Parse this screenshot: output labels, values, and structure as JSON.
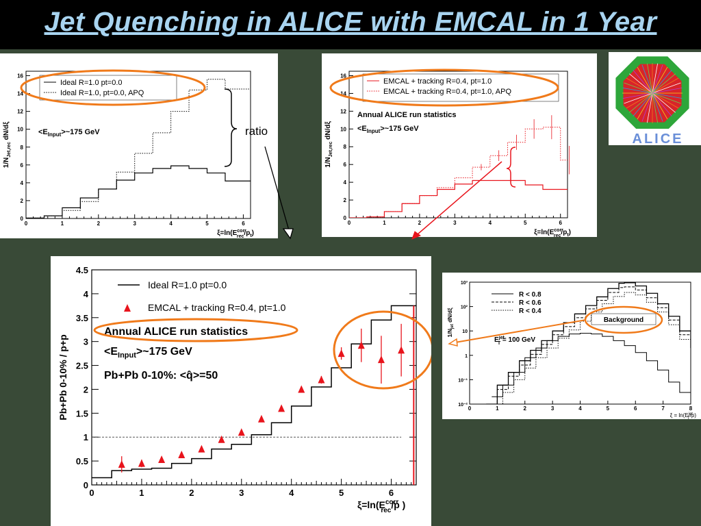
{
  "title": "Jet Quenching in ALICE with EMCAL in 1 Year",
  "ratio_label": "ratio",
  "logo": {
    "text": "ALICE",
    "colors": {
      "octagon": "#2ea63a",
      "inner": "#d8242a",
      "text": "#6a8fd8"
    }
  },
  "colors": {
    "accent_orange": "#f07a1a",
    "red": "#e8141c",
    "black": "#000000"
  },
  "chart_data": [
    {
      "type": "line",
      "ylabel_main": "1/N",
      "ylabel_sub": "Jet,rec",
      "ylabel_tail": " dN/dξ",
      "xlabel": "ξ=ln(E",
      "xlabel_sup": "corr",
      "xlabel_sub": "rec",
      "xlabel_tail": "/p",
      "xlabel_tail_sub": "t",
      "xlabel_end": ")",
      "xlim": [
        0,
        6.2
      ],
      "ylim": [
        0,
        16.5
      ],
      "xticks": [
        "0",
        "1",
        "2",
        "3",
        "4",
        "5",
        "6"
      ],
      "yticks": [
        "0",
        "2",
        "4",
        "6",
        "8",
        "10",
        "12",
        "14",
        "16"
      ],
      "legend": [
        "Ideal R=1.0 pt=0.0",
        "Ideal R=1.0, pt=0.0, APQ"
      ],
      "annotation_main": "<E",
      "annotation_sub": "Input",
      "annotation_tail": ">~175 GeV",
      "edges": [
        0,
        0.5,
        1,
        1.5,
        2,
        2.5,
        3,
        3.5,
        4,
        4.5,
        5,
        5.5,
        6,
        6.5
      ],
      "series": [
        {
          "name": "Ideal R=1.0 pt=0.0",
          "style": "solid",
          "values": [
            0.05,
            0.3,
            1.2,
            2.3,
            3.3,
            4.3,
            5.1,
            5.6,
            5.9,
            5.6,
            5.1,
            4.2,
            4.2
          ]
        },
        {
          "name": "Ideal R=1.0, pt=0.0, APQ",
          "style": "dotted",
          "values": [
            0.05,
            0.3,
            0.9,
            1.9,
            3.3,
            5.2,
            7.3,
            9.6,
            12.0,
            14.4,
            15.6,
            14.5,
            14.5
          ]
        }
      ]
    },
    {
      "type": "line",
      "ylabel_main": "1/N",
      "ylabel_sub": "Jet,rec",
      "ylabel_tail": " dN/dξ",
      "xlabel": "ξ=ln(E",
      "xlabel_sup": "corr",
      "xlabel_sub": "rec",
      "xlabel_tail": "/p",
      "xlabel_tail_sub": "t",
      "xlabel_end": ")",
      "xlim": [
        0,
        6.2
      ],
      "ylim": [
        0,
        16.5
      ],
      "xticks": [
        "0",
        "1",
        "2",
        "3",
        "4",
        "5",
        "6"
      ],
      "yticks": [
        "0",
        "2",
        "4",
        "6",
        "8",
        "10",
        "12",
        "14",
        "16"
      ],
      "legend": [
        "EMCAL + tracking R=0.4, pt=1.0",
        "EMCAL + tracking R=0.4, pt=1.0, APQ"
      ],
      "annotation_top": "Annual ALICE run statistics",
      "annotation_main": "<E",
      "annotation_sub": "Input",
      "annotation_tail": ">~175 GeV",
      "edges": [
        0,
        0.5,
        1,
        1.5,
        2,
        2.5,
        3,
        3.5,
        4,
        4.5,
        5,
        5.5,
        6,
        6.5
      ],
      "series": [
        {
          "name": "EMCAL + tracking R=0.4, pt=1.0",
          "style": "solid",
          "values": [
            0,
            0.1,
            0.7,
            1.6,
            2.5,
            3.2,
            3.8,
            4.2,
            4.2,
            4.2,
            3.7,
            3.2,
            3.2
          ]
        },
        {
          "name": "EMCAL + tracking R=0.4, pt=1.0, APQ",
          "style": "dotted",
          "values": [
            0,
            0.1,
            0.7,
            1.6,
            2.5,
            3.4,
            4.5,
            5.7,
            7.0,
            8.5,
            10.0,
            10.2,
            6.5
          ]
        }
      ]
    },
    {
      "type": "scatter",
      "ylabel": "Pb+Pb 0-10% / p+p",
      "xlabel": "ξ=ln(E",
      "xlabel_sup": "corr",
      "xlabel_sub": "rec",
      "xlabel_tail": "/p )",
      "xlim": [
        0,
        6.5
      ],
      "ylim": [
        0,
        4.5
      ],
      "xticks": [
        "0",
        "1",
        "2",
        "3",
        "4",
        "5",
        "6"
      ],
      "yticks": [
        "0",
        "0.5",
        "1",
        "1.5",
        "2",
        "2.5",
        "3",
        "3.5",
        "4",
        "4.5"
      ],
      "legend": [
        "Ideal R=1.0 pt=0.0",
        "EMCAL + tracking R=0.4, pt=1.0"
      ],
      "annotations": [
        "Annual ALICE run statistics",
        "Pb+Pb 0-10%: <q̂>=50"
      ],
      "annotation_e_main": "<E",
      "annotation_e_sub": "Input",
      "annotation_e_tail": ">~175 GeV",
      "reference_line": 1,
      "step_edges": [
        0,
        0.4,
        0.8,
        1.2,
        1.6,
        2.0,
        2.4,
        2.8,
        3.2,
        3.6,
        4.0,
        4.4,
        4.8,
        5.2,
        5.6,
        6.0,
        6.5
      ],
      "step_values": [
        0.15,
        0.3,
        0.33,
        0.35,
        0.45,
        0.55,
        0.75,
        0.85,
        1.05,
        1.3,
        1.65,
        2.05,
        2.45,
        2.95,
        3.45,
        3.75
      ],
      "points": [
        {
          "x": 0.6,
          "y": 0.43,
          "err": 0.17
        },
        {
          "x": 1.0,
          "y": 0.45,
          "err": 0.08
        },
        {
          "x": 1.4,
          "y": 0.53,
          "err": 0.05
        },
        {
          "x": 1.8,
          "y": 0.63,
          "err": 0.04
        },
        {
          "x": 2.2,
          "y": 0.75,
          "err": 0.04
        },
        {
          "x": 2.6,
          "y": 0.95,
          "err": 0.04
        },
        {
          "x": 3.0,
          "y": 1.1,
          "err": 0.04
        },
        {
          "x": 3.4,
          "y": 1.38,
          "err": 0.05
        },
        {
          "x": 3.8,
          "y": 1.6,
          "err": 0.05
        },
        {
          "x": 4.2,
          "y": 2.0,
          "err": 0.06
        },
        {
          "x": 4.6,
          "y": 2.2,
          "err": 0.08
        },
        {
          "x": 5.0,
          "y": 2.75,
          "err": 0.13
        },
        {
          "x": 5.4,
          "y": 2.92,
          "err": 0.35
        },
        {
          "x": 5.8,
          "y": 2.62,
          "err": 0.5
        },
        {
          "x": 6.2,
          "y": 2.82,
          "err": 0.55
        }
      ]
    },
    {
      "type": "line",
      "log_y": true,
      "ylabel_main": "1/N",
      "ylabel_sub": "jet",
      "ylabel_tail": " dN/dξ",
      "xlabel_main": "ξ = ln(E",
      "xlabel_sup": "jet",
      "xlabel_sub": "T",
      "xlabel_tail": "/p)",
      "xlim": [
        0,
        8
      ],
      "ylim": [
        0.01,
        1000
      ],
      "xticks": [
        "0",
        "1",
        "2",
        "3",
        "4",
        "5",
        "6",
        "7",
        "8"
      ],
      "yticks": [
        "10⁻²",
        "10⁻¹",
        "1",
        "10",
        "10²",
        "10³"
      ],
      "legend": [
        "R < 0.8",
        "R < 0.6",
        "R < 0.4"
      ],
      "annotations": [
        "Background"
      ],
      "annotation_e_main": "E",
      "annotation_e_sup": "jet",
      "annotation_e_sub": "T",
      "annotation_e_tail": " = 100 GeV",
      "series": [
        {
          "name": "R < 0.8",
          "style": "solid",
          "x": [
            0.6,
            1,
            1.4,
            1.8,
            2.2,
            2.6,
            3,
            3.4,
            3.8,
            4.2,
            4.6,
            5,
            5.4,
            5.6,
            6,
            6.4,
            6.8,
            7.2,
            7.6,
            8
          ],
          "y": [
            0.01,
            0.06,
            0.2,
            0.6,
            1.6,
            4,
            10,
            22,
            50,
            110,
            250,
            550,
            900,
            950,
            700,
            350,
            130,
            40,
            10,
            2
          ]
        },
        {
          "name": "R < 0.6",
          "style": "dashed",
          "x": [
            0.6,
            1,
            1.4,
            1.8,
            2.2,
            2.6,
            3,
            3.4,
            3.8,
            4.2,
            4.6,
            5,
            5.4,
            5.6,
            6,
            6.4,
            6.8,
            7.2,
            7.6,
            8
          ],
          "y": [
            0.008,
            0.04,
            0.14,
            0.4,
            1.1,
            2.8,
            7,
            15,
            35,
            80,
            180,
            380,
            600,
            640,
            480,
            230,
            90,
            28,
            7,
            1.5
          ]
        },
        {
          "name": "R < 0.4",
          "style": "dotted",
          "x": [
            0.8,
            1.2,
            1.6,
            2,
            2.4,
            2.8,
            3.2,
            3.6,
            4,
            4.4,
            4.8,
            5.2,
            5.6,
            6,
            6.4,
            6.8,
            7.2,
            7.6,
            8
          ],
          "y": [
            0.01,
            0.03,
            0.1,
            0.3,
            0.8,
            2,
            5,
            11,
            25,
            60,
            130,
            260,
            380,
            300,
            150,
            60,
            18,
            4.5,
            1
          ]
        },
        {
          "name": "background",
          "style": "solid",
          "x": [
            0.8,
            1.2,
            1.6,
            2,
            2.4,
            2.8,
            3.2,
            3.6,
            4,
            4.4,
            4.8,
            5.2,
            5.6,
            6,
            6.4,
            6.8,
            7.2,
            7.6,
            8
          ],
          "y": [
            0.02,
            0.06,
            0.2,
            0.8,
            2,
            4,
            6,
            7.5,
            8,
            7.5,
            6,
            4,
            2.5,
            1.3,
            0.6,
            0.25,
            0.08,
            0.03,
            0.015
          ]
        }
      ]
    }
  ]
}
